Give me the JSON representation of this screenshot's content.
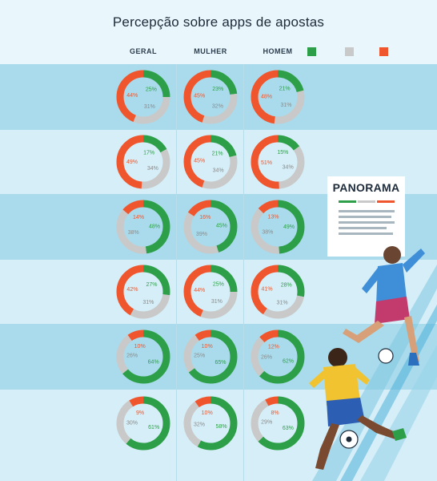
{
  "title": "Percepção sobre apps de apostas",
  "columns": [
    "GERAL",
    "MULHER",
    "HOMEM"
  ],
  "legend": [
    {
      "label": "",
      "color": "#2e9f49"
    },
    {
      "label": "",
      "color": "#c9c9c9"
    },
    {
      "label": "",
      "color": "#f0562d"
    }
  ],
  "colors": {
    "green": "#2e9f49",
    "gray": "#c9c9c9",
    "orange": "#f0562d"
  },
  "panorama": {
    "title": "PANORAMA"
  },
  "chart_data": {
    "type": "pie",
    "variant": "donut-grid",
    "title": "Percepção sobre apps de apostas",
    "groups": [
      "GERAL",
      "MULHER",
      "HOMEM"
    ],
    "series_order": [
      "green",
      "gray",
      "orange"
    ],
    "rows": [
      {
        "question": "",
        "values": [
          [
            25,
            31,
            44
          ],
          [
            23,
            32,
            45
          ],
          [
            21,
            31,
            48
          ]
        ]
      },
      {
        "question": "",
        "values": [
          [
            17,
            34,
            49
          ],
          [
            21,
            34,
            45
          ],
          [
            15,
            34,
            51
          ]
        ]
      },
      {
        "question": "",
        "values": [
          [
            48,
            38,
            14
          ],
          [
            45,
            39,
            16
          ],
          [
            49,
            38,
            13
          ]
        ]
      },
      {
        "question": "",
        "values": [
          [
            27,
            31,
            42
          ],
          [
            25,
            31,
            44
          ],
          [
            28,
            31,
            41
          ]
        ]
      },
      {
        "question": "",
        "values": [
          [
            64,
            26,
            10
          ],
          [
            65,
            25,
            10
          ],
          [
            62,
            26,
            12
          ]
        ]
      },
      {
        "question": "",
        "values": [
          [
            61,
            30,
            9
          ],
          [
            58,
            32,
            10
          ],
          [
            63,
            29,
            8
          ]
        ]
      }
    ]
  }
}
